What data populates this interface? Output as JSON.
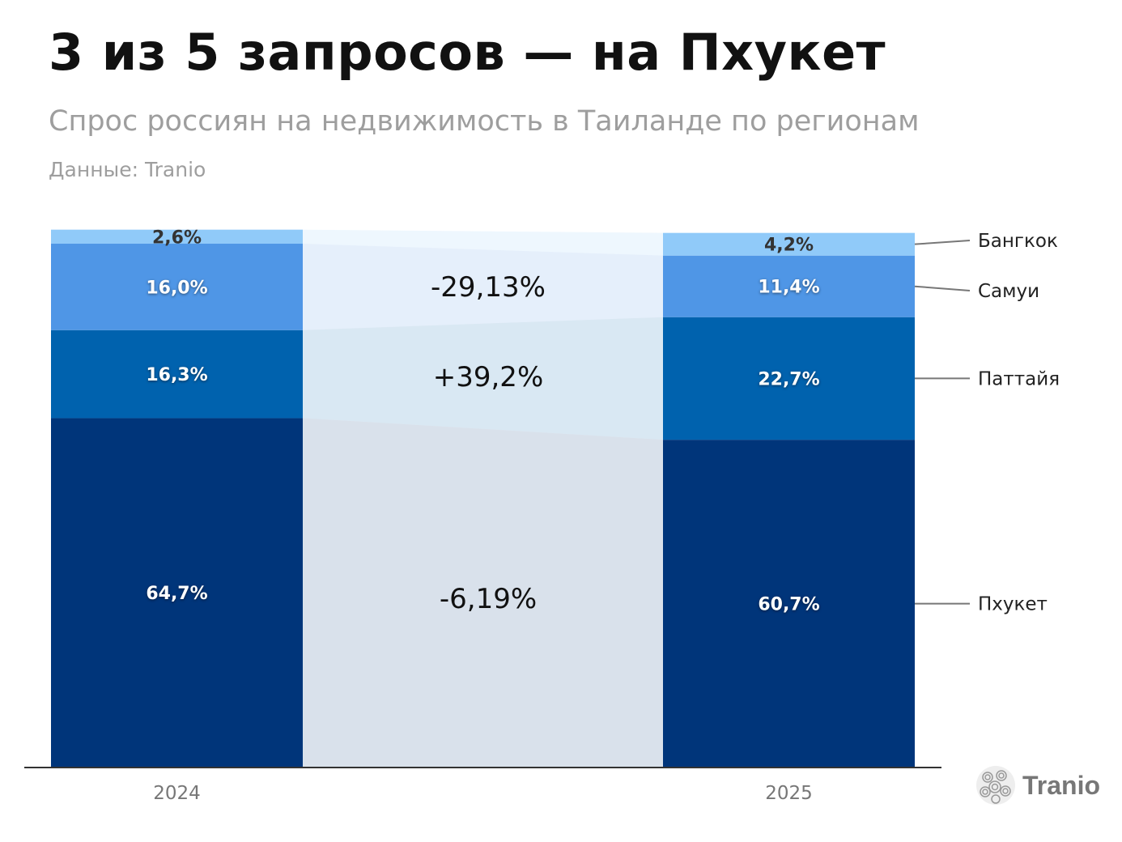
{
  "header": {
    "title": "3 из 5 запросов — на Пхукет",
    "subtitle": "Спрос россиян на недвижимость в Таиланде по регионам",
    "source": "Данные: Tranio"
  },
  "logo": {
    "text": "Tranio"
  },
  "chart_data": {
    "type": "bar",
    "stacked": true,
    "categories": [
      "2024",
      "2025"
    ],
    "series": [
      {
        "name": "Пхукет",
        "values": [
          64.7,
          60.7
        ],
        "labels": [
          "64,7%",
          "60,7%"
        ],
        "color": "#00357A",
        "change": "-6,19%"
      },
      {
        "name": "Паттайя",
        "values": [
          16.3,
          22.7
        ],
        "labels": [
          "16,3%",
          "22,7%"
        ],
        "color": "#0062AE",
        "change": "+39,2%"
      },
      {
        "name": "Самуи",
        "values": [
          16.0,
          11.4
        ],
        "labels": [
          "16,0%",
          "11,4%"
        ],
        "color": "#4F96E6",
        "change": "-29,13%"
      },
      {
        "name": "Бангкок",
        "values": [
          2.6,
          4.2
        ],
        "labels": [
          "2,6%",
          "4,2%"
        ],
        "color": "#90CAF9",
        "change": ""
      }
    ],
    "ylim": [
      0,
      100
    ],
    "legend": "right",
    "grid": false
  }
}
